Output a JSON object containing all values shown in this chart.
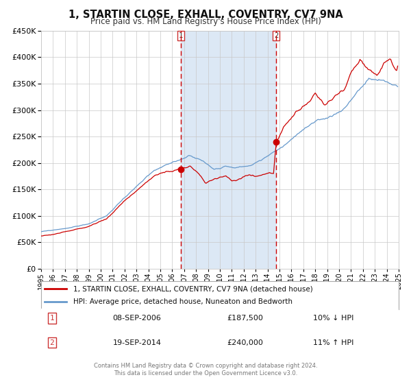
{
  "title": "1, STARTIN CLOSE, EXHALL, COVENTRY, CV7 9NA",
  "subtitle": "Price paid vs. HM Land Registry's House Price Index (HPI)",
  "legend_line1": "1, STARTIN CLOSE, EXHALL, COVENTRY, CV7 9NA (detached house)",
  "legend_line2": "HPI: Average price, detached house, Nuneaton and Bedworth",
  "marker1_date": "08-SEP-2006",
  "marker1_price": "£187,500",
  "marker1_hpi": "10% ↓ HPI",
  "marker2_date": "19-SEP-2014",
  "marker2_price": "£240,000",
  "marker2_hpi": "11% ↑ HPI",
  "footer1": "Contains HM Land Registry data © Crown copyright and database right 2024.",
  "footer2": "This data is licensed under the Open Government Licence v3.0.",
  "red_color": "#cc0000",
  "blue_color": "#6699cc",
  "shade_color": "#dce8f5",
  "grid_color": "#c8c8c8",
  "bg_color": "#ffffff",
  "year_start": 1995,
  "year_end": 2025,
  "ylim_max": 450000,
  "sale1_year": 2006.708,
  "sale2_year": 2014.722,
  "sale1_price": 187500,
  "sale2_price": 240000
}
